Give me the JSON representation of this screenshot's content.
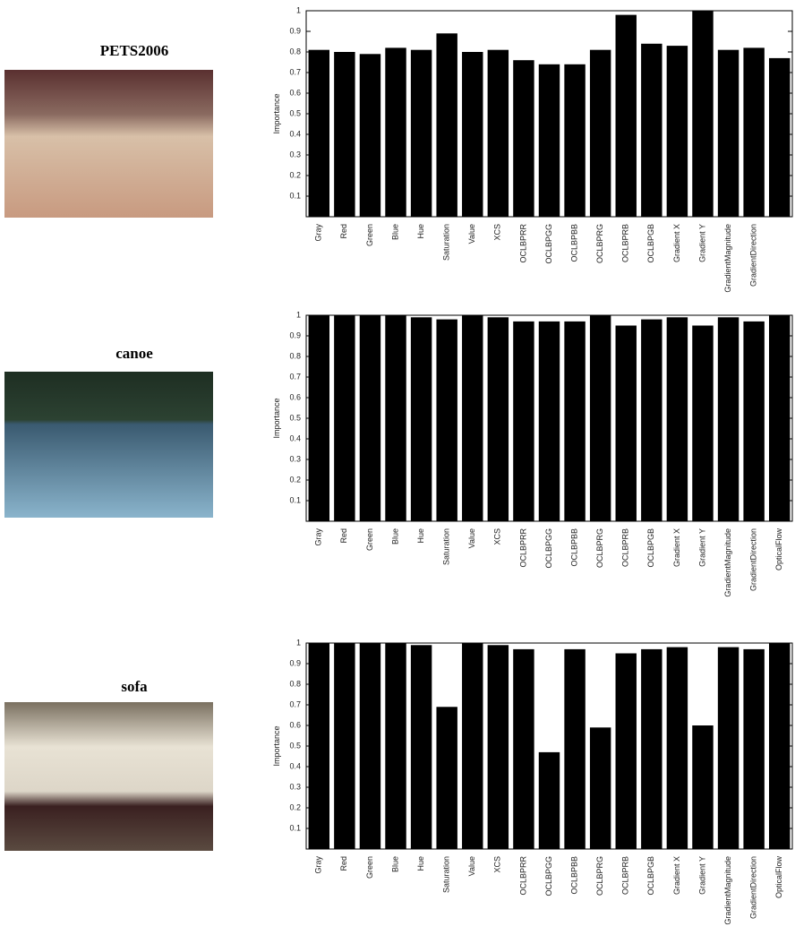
{
  "chart_data": [
    {
      "type": "bar",
      "title": "PETS2006",
      "ylabel": "Importance",
      "color": "#000000",
      "categories": [
        "Gray",
        "Red",
        "Green",
        "Blue",
        "Hue",
        "Saturation",
        "Value",
        "XCS",
        "OCLBPRR",
        "OCLBPGG",
        "OCLBPBB",
        "OCLBPRG",
        "OCLBPRB",
        "OCLBPGB",
        "Gradient X",
        "Gradient Y",
        "GradientMagnitude",
        "GradientDirection",
        null
      ],
      "values": [
        0.81,
        0.8,
        0.79,
        0.82,
        0.81,
        0.89,
        0.8,
        0.81,
        0.76,
        0.74,
        0.74,
        0.81,
        0.98,
        0.84,
        0.83,
        1.0,
        0.81,
        0.82,
        0.77
      ],
      "ylim": [
        0,
        1
      ],
      "yticks": [
        0.1,
        0.2,
        0.3,
        0.4,
        0.5,
        0.6,
        0.7,
        0.8,
        0.9,
        1
      ]
    },
    {
      "type": "bar",
      "title": "canoe",
      "ylabel": "Importance",
      "color": "#000000",
      "categories": [
        "Gray",
        "Red",
        "Green",
        "Blue",
        "Hue",
        "Saturation",
        "Value",
        "XCS",
        "OCLBPRR",
        "OCLBPGG",
        "OCLBPBB",
        "OCLBPRG",
        "OCLBPRB",
        "OCLBPGB",
        "Gradient X",
        "Gradient Y",
        "GradientMagnitude",
        "GradientDirection",
        "OpticalFlow"
      ],
      "values": [
        1.0,
        1.0,
        1.0,
        1.0,
        0.99,
        0.98,
        1.0,
        0.99,
        0.97,
        0.97,
        0.97,
        1.0,
        0.95,
        0.98,
        0.99,
        0.95,
        0.99,
        0.97,
        1.0
      ],
      "ylim": [
        0,
        1
      ],
      "yticks": [
        0.1,
        0.2,
        0.3,
        0.4,
        0.5,
        0.6,
        0.7,
        0.8,
        0.9,
        1
      ]
    },
    {
      "type": "bar",
      "title": "sofa",
      "ylabel": "Importance",
      "color": "#000000",
      "categories": [
        "Gray",
        "Red",
        "Green",
        "Blue",
        "Hue",
        "Saturation",
        "Value",
        "XCS",
        "OCLBPRR",
        "OCLBPGG",
        "OCLBPBB",
        "OCLBPRG",
        "OCLBPRB",
        "OCLBPGB",
        "Gradient X",
        "Gradient Y",
        "GradientMagnitude",
        "GradientDirection",
        "OpticalFlow"
      ],
      "values": [
        1.0,
        1.0,
        1.0,
        1.0,
        0.99,
        0.69,
        1.0,
        0.99,
        0.97,
        0.47,
        0.97,
        0.59,
        0.95,
        0.97,
        0.98,
        0.6,
        0.98,
        0.97,
        1.0
      ],
      "ylim": [
        0,
        1
      ],
      "yticks": [
        0.1,
        0.2,
        0.3,
        0.4,
        0.5,
        0.6,
        0.7,
        0.8,
        0.9,
        1
      ]
    }
  ]
}
